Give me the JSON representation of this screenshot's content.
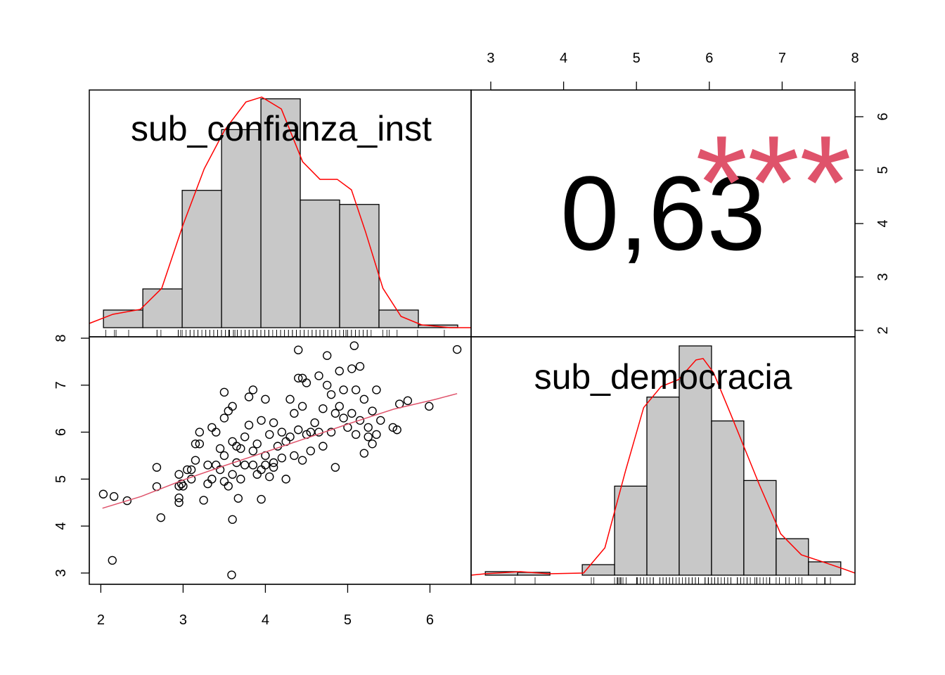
{
  "chart_data": [
    {
      "type": "histogram",
      "title": "sub_confianza_inst",
      "color": "#c8c8c8",
      "bins": [
        2.0,
        2.5,
        3.0,
        3.5,
        4.0,
        4.5,
        5.0,
        5.5,
        6.0,
        6.5
      ],
      "values": [
        2,
        4.4,
        15.6,
        22.5,
        26,
        14.5,
        14,
        2,
        0.3
      ],
      "xlim": [
        1.82,
        6.67
      ],
      "ylim": [
        0,
        27
      ],
      "density": {
        "color": "#ff0000",
        "x": [
          1.82,
          2.12,
          2.47,
          2.74,
          3.01,
          3.28,
          3.54,
          3.81,
          4.01,
          4.26,
          4.53,
          4.75,
          4.97,
          5.15,
          5.33,
          5.55,
          5.78,
          6.04,
          6.4,
          6.67
        ],
        "y": [
          0.48,
          1.52,
          2.08,
          4.47,
          11.66,
          18.05,
          22.45,
          25.64,
          26.2,
          24.84,
          18.85,
          16.85,
          16.85,
          15.66,
          10.86,
          4.47,
          1.28,
          0.32,
          0,
          0
        ]
      }
    },
    {
      "type": "correlation",
      "value": 0.63,
      "value_label": "0,63",
      "stars": "***",
      "stars_color": "#df536b",
      "xlim": [
        2.73,
        8.0
      ],
      "xticks": [
        3,
        4,
        5,
        6,
        7,
        8
      ],
      "ylim": [
        1.88,
        6.5
      ],
      "yticks": [
        2,
        3,
        4,
        5,
        6
      ]
    },
    {
      "type": "scatter",
      "xlim": [
        1.86,
        6.5
      ],
      "xticks": [
        2,
        3,
        4,
        5,
        6
      ],
      "ylim": [
        2.76,
        8.03
      ],
      "yticks": [
        3,
        4,
        5,
        6,
        7,
        8
      ],
      "x": [
        2.03,
        2.16,
        2.32,
        2.14,
        3.59,
        2.73,
        2.68,
        2.68,
        6.33,
        5.99,
        5.63,
        5.73,
        5.08,
        4.4,
        4.75,
        3.6,
        3.67,
        3.95,
        2.95,
        2.95,
        2.95,
        2.98,
        2.95,
        3.05,
        3.1,
        3.15,
        3.2,
        3.15,
        3.2,
        3.25,
        3.3,
        3.3,
        3.35,
        3.4,
        3.45,
        3.45,
        3.5,
        3.5,
        3.5,
        3.55,
        3.5,
        3.6,
        3.6,
        3.65,
        3.65,
        3.7,
        3.75,
        3.75,
        3.8,
        3.8,
        3.85,
        3.85,
        3.9,
        3.95,
        3.95,
        4.0,
        4.0,
        4.05,
        4.1,
        4.1,
        4.15,
        4.2,
        4.25,
        4.3,
        4.35,
        4.35,
        4.4,
        4.4,
        4.45,
        4.45,
        4.5,
        4.5,
        4.55,
        4.6,
        4.65,
        4.7,
        4.7,
        4.75,
        4.8,
        4.8,
        4.85,
        4.85,
        4.9,
        4.9,
        4.95,
        4.95,
        5.0,
        5.05,
        5.05,
        5.1,
        5.1,
        5.15,
        5.15,
        5.2,
        5.25,
        5.25,
        5.3,
        5.3,
        5.35,
        5.4,
        5.55,
        5.6,
        5.2,
        5.35,
        3.0,
        3.1,
        3.4,
        3.55,
        3.6,
        3.7,
        3.9,
        4.05,
        4.1,
        4.2,
        4.25,
        4.3,
        4.45,
        4.55,
        4.0,
        3.85,
        3.35,
        4.65
      ],
      "y": [
        4.68,
        4.63,
        4.54,
        3.27,
        2.96,
        4.18,
        5.25,
        4.84,
        7.76,
        6.55,
        6.6,
        6.67,
        7.84,
        7.75,
        7.63,
        4.14,
        4.59,
        4.57,
        4.5,
        4.6,
        4.85,
        4.9,
        5.1,
        5.2,
        5.0,
        5.4,
        5.75,
        5.75,
        6.0,
        4.55,
        4.9,
        5.3,
        6.1,
        6.0,
        5.65,
        5.2,
        4.95,
        5.5,
        6.3,
        6.45,
        6.85,
        6.55,
        5.8,
        5.7,
        5.35,
        5.0,
        5.3,
        5.9,
        6.15,
        6.75,
        6.9,
        5.6,
        5.75,
        6.25,
        5.2,
        5.5,
        6.7,
        5.95,
        5.35,
        6.2,
        5.7,
        6.0,
        5.8,
        6.7,
        6.4,
        5.5,
        6.05,
        7.15,
        7.15,
        6.55,
        5.95,
        7.05,
        6.0,
        6.2,
        7.2,
        6.5,
        5.7,
        7.0,
        6.8,
        6.0,
        6.4,
        5.25,
        7.3,
        6.55,
        6.3,
        6.9,
        6.1,
        7.35,
        6.4,
        6.9,
        5.95,
        7.4,
        6.25,
        5.55,
        6.1,
        5.9,
        6.45,
        5.75,
        5.95,
        6.25,
        6.1,
        6.05,
        6.7,
        6.9,
        4.85,
        5.2,
        5.3,
        4.85,
        5.1,
        5.65,
        5.1,
        5.05,
        5.25,
        5.45,
        5.0,
        5.9,
        5.4,
        5.6,
        5.3,
        5.3,
        5.0,
        6.0
      ],
      "fit": {
        "color": "#df536b",
        "x": [
          2.02,
          2.49,
          3.0,
          3.51,
          3.99,
          4.53,
          5.05,
          5.56,
          6.07,
          6.33
        ],
        "y": [
          4.38,
          4.63,
          4.98,
          5.29,
          5.57,
          5.89,
          6.2,
          6.49,
          6.7,
          6.82
        ]
      }
    },
    {
      "type": "histogram",
      "title": "sub_democracia",
      "color": "#c8c8c8",
      "bins": [
        2.5,
        3.0,
        3.5,
        4.0,
        4.5,
        5.0,
        5.5,
        6.0,
        6.5,
        7.0,
        7.5,
        8.0
      ],
      "values": [
        0.5,
        0.4,
        0,
        1.5,
        12.7,
        25.4,
        32.7,
        22,
        13.5,
        5.2,
        1.9
      ],
      "xlim": [
        2.28,
        8.22
      ],
      "ylim": [
        0,
        34
      ],
      "density": {
        "color": "#ff0000",
        "x": [
          2.28,
          2.5,
          3.04,
          3.48,
          4.02,
          4.35,
          4.67,
          4.95,
          5.22,
          5.49,
          5.76,
          5.87,
          6.03,
          6.3,
          6.52,
          6.74,
          7.07,
          7.39,
          7.72,
          8.04,
          8.22
        ],
        "y": [
          0,
          0.2,
          0.5,
          0.2,
          0.3,
          3.9,
          14.9,
          23.9,
          26.9,
          27.9,
          30.7,
          30.9,
          28.9,
          22.9,
          17.9,
          12.9,
          5.9,
          2.9,
          1.9,
          0.9,
          0.3
        ]
      }
    }
  ]
}
